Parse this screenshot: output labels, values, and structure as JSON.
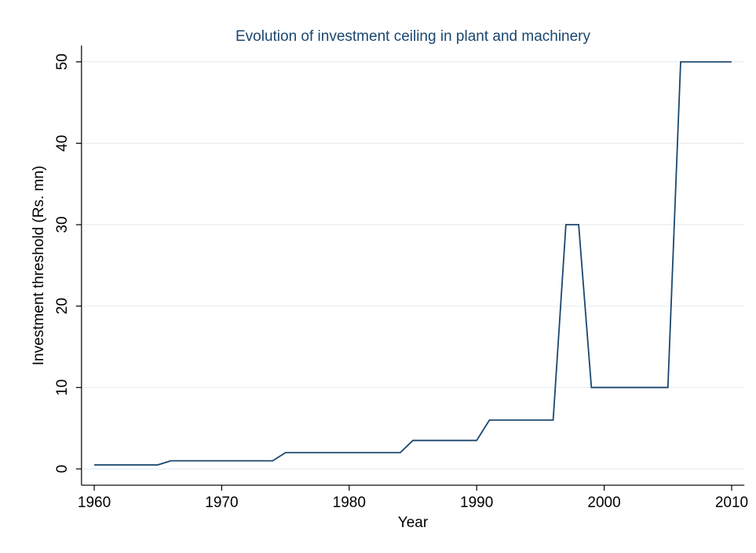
{
  "chart_data": {
    "type": "line",
    "title": "Evolution of investment ceiling in plant and machinery",
    "xlabel": "Year",
    "ylabel": "Investment threshold (Rs. mn)",
    "x": [
      1960,
      1961,
      1962,
      1963,
      1964,
      1965,
      1966,
      1967,
      1968,
      1969,
      1970,
      1971,
      1972,
      1973,
      1974,
      1975,
      1976,
      1977,
      1978,
      1979,
      1980,
      1981,
      1982,
      1983,
      1984,
      1985,
      1986,
      1987,
      1988,
      1989,
      1990,
      1991,
      1992,
      1993,
      1994,
      1995,
      1996,
      1997,
      1998,
      1999,
      2000,
      2001,
      2002,
      2003,
      2004,
      2005,
      2006,
      2007,
      2008,
      2009,
      2010
    ],
    "values": [
      0.5,
      0.5,
      0.5,
      0.5,
      0.5,
      0.5,
      1,
      1,
      1,
      1,
      1,
      1,
      1,
      1,
      1,
      2,
      2,
      2,
      2,
      2,
      2,
      2,
      2,
      2,
      2,
      3.5,
      3.5,
      3.5,
      3.5,
      3.5,
      3.5,
      6,
      6,
      6,
      6,
      6,
      6,
      30,
      30,
      10,
      10,
      10,
      10,
      10,
      10,
      10,
      50,
      50,
      50,
      50,
      50
    ],
    "color": "#1a476f",
    "xlim": [
      1959,
      2011
    ],
    "xticks": [
      1960,
      1970,
      1980,
      1990,
      2000,
      2010
    ],
    "ylim": [
      -2,
      52
    ],
    "yticks": [
      0,
      10,
      20,
      30,
      40,
      50
    ],
    "grid": true
  }
}
